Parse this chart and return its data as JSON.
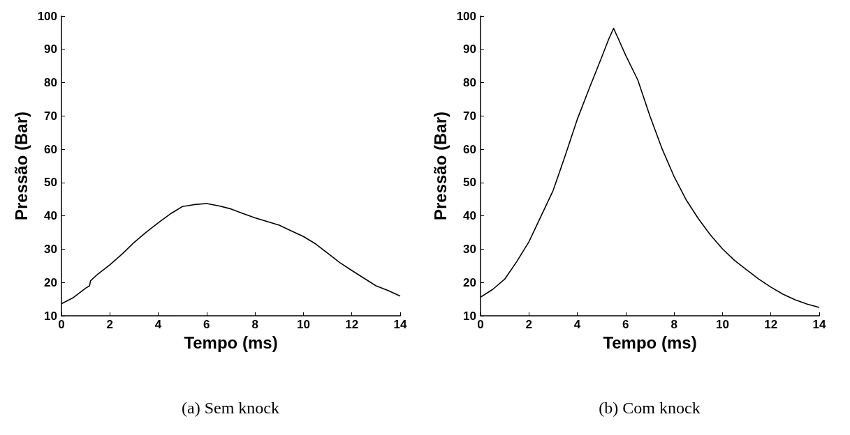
{
  "chart_data": [
    {
      "type": "line",
      "xlabel": "Tempo (ms)",
      "ylabel": "Pressão (Bar)",
      "annotations": [
        "(a) Sem knock"
      ],
      "xlim": [
        0,
        14
      ],
      "xticks": [
        0,
        2,
        4,
        6,
        8,
        10,
        12,
        14
      ],
      "ylim": [
        10,
        100
      ],
      "yticks": [
        10,
        20,
        30,
        40,
        50,
        60,
        70,
        80,
        90,
        100
      ],
      "grid": false,
      "marker": "none",
      "line_style": "solid",
      "series": [
        {
          "color": "#000000",
          "x": [
            0,
            0.5,
            1,
            1.16,
            1.2,
            1.5,
            2,
            2.5,
            3,
            3.5,
            4,
            4.5,
            5,
            5.5,
            6,
            6.5,
            7,
            7.5,
            8,
            8.5,
            9,
            9.5,
            10,
            10.5,
            11,
            11.5,
            12,
            12.5,
            13,
            13.5,
            14
          ],
          "values": [
            13.6,
            15.5,
            18.3,
            19,
            20.5,
            22.5,
            25.3,
            28.5,
            32,
            35.1,
            37.9,
            40.6,
            42.8,
            43.4,
            43.7,
            43,
            42.1,
            40.7,
            39.4,
            38.3,
            37.2,
            35.5,
            33.8,
            31.6,
            28.8,
            26,
            23.6,
            21.3,
            19,
            17.6,
            15.9
          ]
        }
      ]
    },
    {
      "type": "line",
      "xlabel": "Tempo (ms)",
      "ylabel": "Pressão (Bar)",
      "annotations": [
        "(b) Com knock"
      ],
      "xlim": [
        0,
        14
      ],
      "xticks": [
        0,
        2,
        4,
        6,
        8,
        10,
        12,
        14
      ],
      "ylim": [
        10,
        100
      ],
      "yticks": [
        10,
        20,
        30,
        40,
        50,
        60,
        70,
        80,
        90,
        100
      ],
      "grid": false,
      "marker": "none",
      "line_style": "solid",
      "series": [
        {
          "color": "#000000",
          "x": [
            0,
            0.5,
            1,
            1.5,
            2,
            2.5,
            3,
            3.5,
            4,
            4.5,
            5,
            5.3,
            5.5,
            5.7,
            6,
            6.5,
            7,
            7.5,
            8,
            8.5,
            9,
            9.5,
            10,
            10.5,
            11,
            11.5,
            12,
            12.5,
            13,
            13.5,
            14
          ],
          "values": [
            15.6,
            17.9,
            21,
            26.3,
            32.2,
            39.9,
            47.6,
            58.1,
            69,
            78.4,
            87.5,
            93.1,
            96.3,
            93.1,
            88.2,
            80.8,
            70,
            60.2,
            51.8,
            44.8,
            39.2,
            34.3,
            30.1,
            26.6,
            23.8,
            21,
            18.6,
            16.5,
            14.8,
            13.5,
            12.5
          ]
        }
      ]
    }
  ]
}
